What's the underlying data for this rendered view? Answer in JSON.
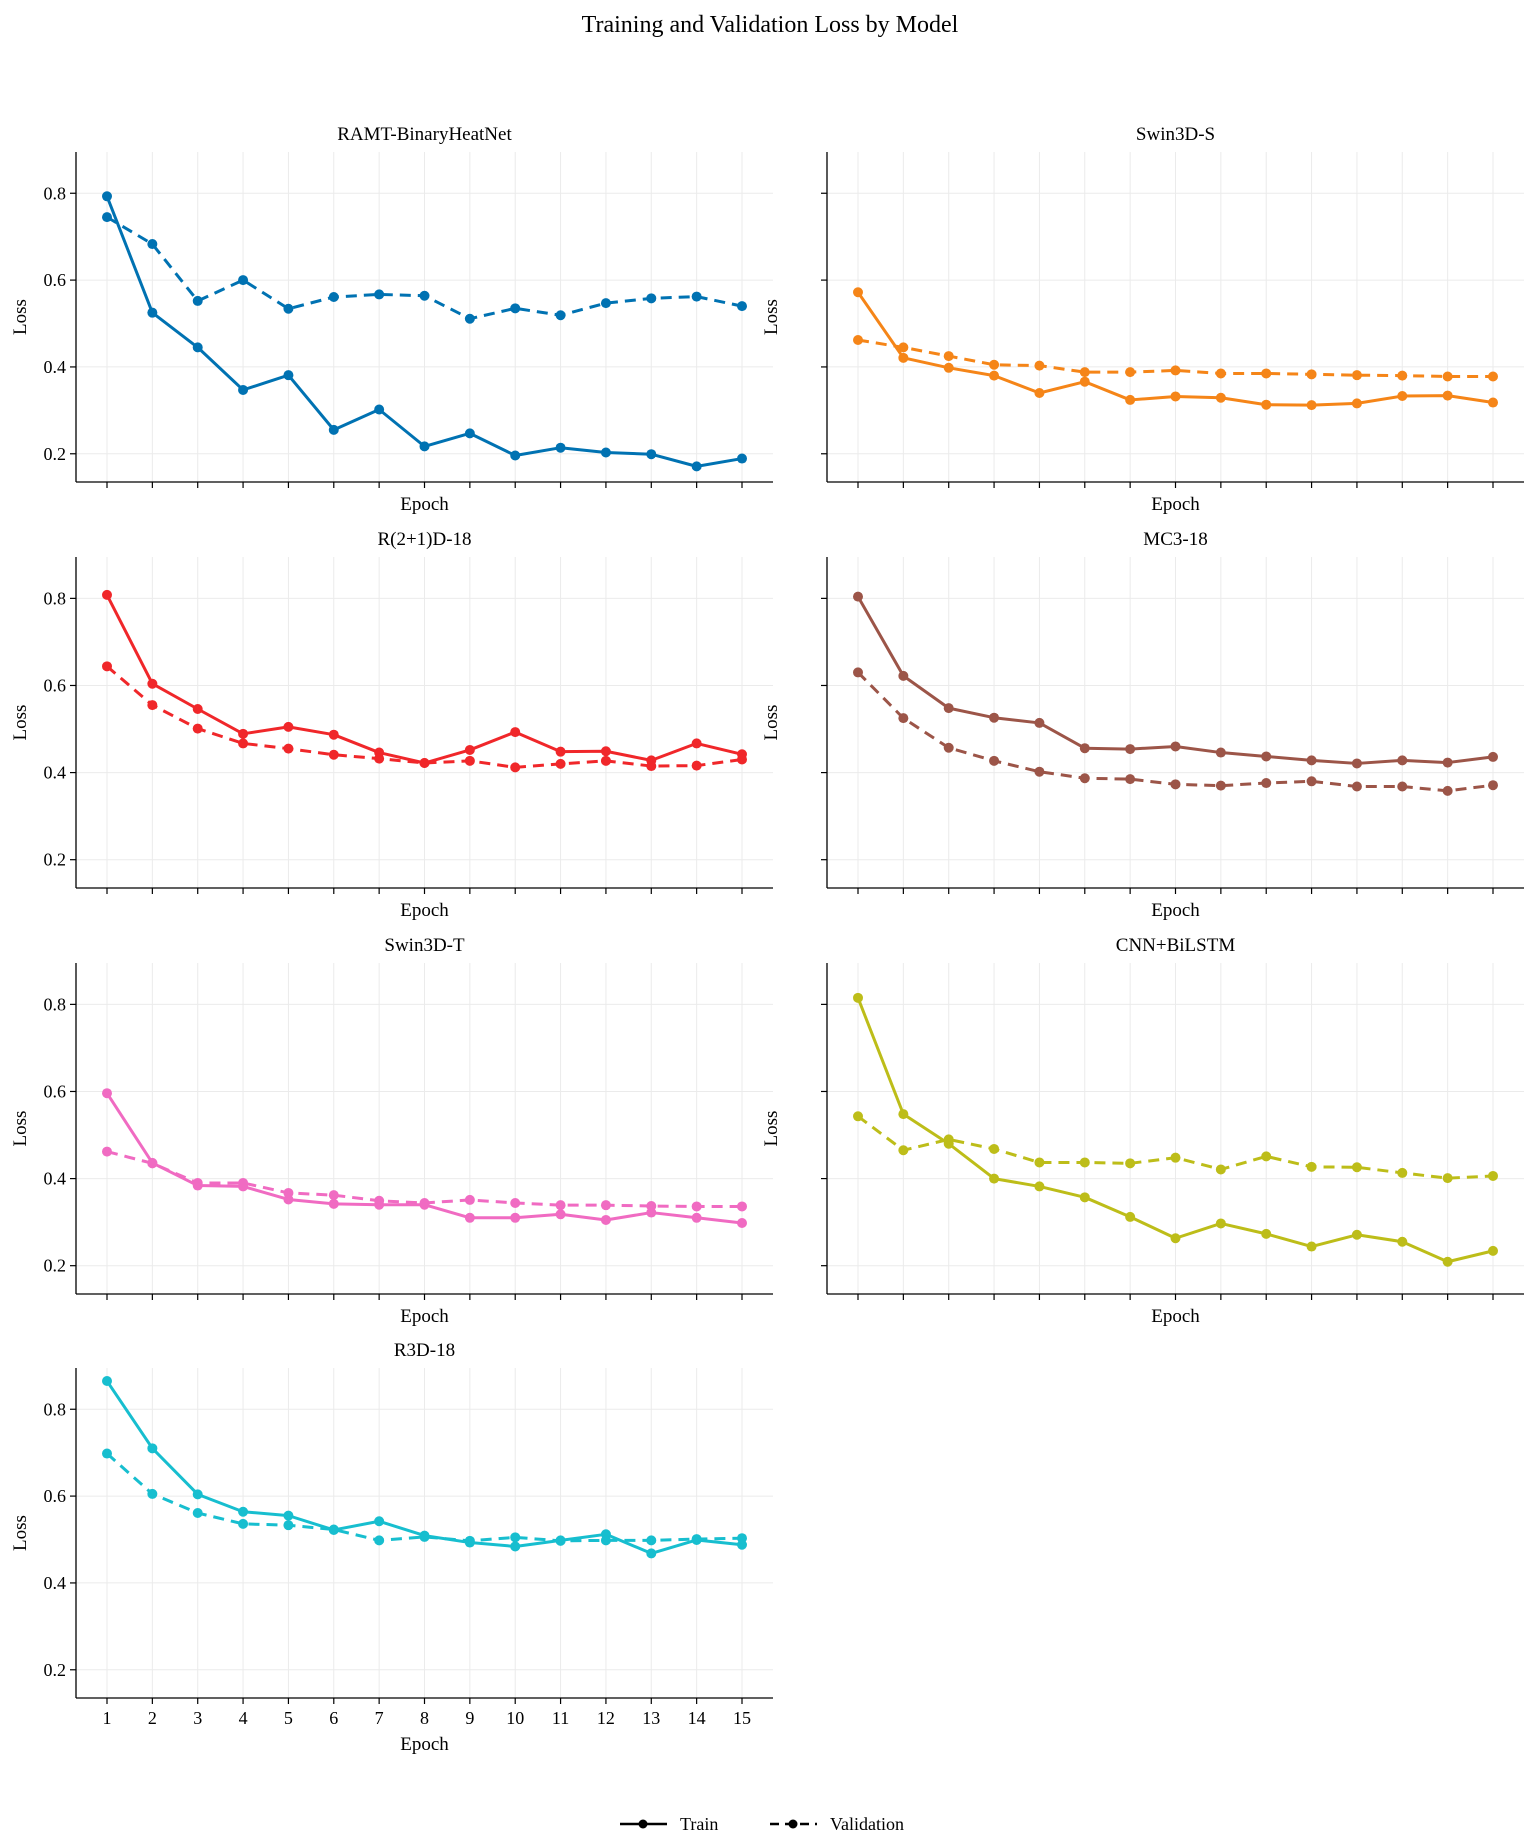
{
  "title": "Training and Validation Loss by Model",
  "legend": {
    "placement": "bottom-center",
    "items": [
      {
        "label": "Train",
        "style": "solid"
      },
      {
        "label": "Validation",
        "style": "dashed"
      }
    ]
  },
  "chart_data": [
    {
      "type": "line",
      "title": "RAMT-BinaryHeatNet",
      "color": "#0072B2",
      "xlabel": "Epoch",
      "ylabel": "Loss",
      "x": [
        1,
        2,
        3,
        4,
        5,
        6,
        7,
        8,
        9,
        10,
        11,
        12,
        13,
        14,
        15
      ],
      "ylim": [
        0.135,
        0.895
      ],
      "yticks": [
        0.2,
        0.4,
        0.6,
        0.8
      ],
      "xtick_labels_shown": false,
      "ytick_labels_shown": true,
      "grid": true,
      "series": [
        {
          "name": "Train",
          "values": [
            0.793,
            0.525,
            0.445,
            0.347,
            0.381,
            0.255,
            0.302,
            0.217,
            0.247,
            0.196,
            0.214,
            0.203,
            0.199,
            0.171,
            0.189
          ]
        },
        {
          "name": "Validation",
          "values": [
            0.745,
            0.683,
            0.552,
            0.6,
            0.534,
            0.561,
            0.567,
            0.564,
            0.511,
            0.535,
            0.519,
            0.547,
            0.558,
            0.562,
            0.54
          ]
        }
      ]
    },
    {
      "type": "line",
      "title": "Swin3D-S",
      "color": "#F58518",
      "xlabel": "Epoch",
      "ylabel": "Loss",
      "x": [
        1,
        2,
        3,
        4,
        5,
        6,
        7,
        8,
        9,
        10,
        11,
        12,
        13,
        14,
        15
      ],
      "ylim": [
        0.135,
        0.895
      ],
      "yticks": [
        0.2,
        0.4,
        0.6,
        0.8
      ],
      "xtick_labels_shown": false,
      "ytick_labels_shown": false,
      "grid": true,
      "series": [
        {
          "name": "Train",
          "values": [
            0.572,
            0.421,
            0.398,
            0.38,
            0.34,
            0.366,
            0.324,
            0.332,
            0.329,
            0.313,
            0.312,
            0.316,
            0.333,
            0.334,
            0.318
          ]
        },
        {
          "name": "Validation",
          "values": [
            0.462,
            0.445,
            0.425,
            0.405,
            0.403,
            0.388,
            0.388,
            0.392,
            0.385,
            0.385,
            0.383,
            0.381,
            0.38,
            0.378,
            0.378
          ]
        }
      ]
    },
    {
      "type": "line",
      "title": "R(2+1)D-18",
      "color": "#F0272A",
      "xlabel": "Epoch",
      "ylabel": "Loss",
      "x": [
        1,
        2,
        3,
        4,
        5,
        6,
        7,
        8,
        9,
        10,
        11,
        12,
        13,
        14,
        15
      ],
      "ylim": [
        0.135,
        0.895
      ],
      "yticks": [
        0.2,
        0.4,
        0.6,
        0.8
      ],
      "xtick_labels_shown": false,
      "ytick_labels_shown": true,
      "grid": true,
      "series": [
        {
          "name": "Train",
          "values": [
            0.808,
            0.604,
            0.546,
            0.489,
            0.505,
            0.487,
            0.446,
            0.422,
            0.452,
            0.493,
            0.448,
            0.449,
            0.428,
            0.467,
            0.442
          ]
        },
        {
          "name": "Validation",
          "values": [
            0.644,
            0.555,
            0.501,
            0.467,
            0.455,
            0.441,
            0.432,
            0.422,
            0.427,
            0.412,
            0.42,
            0.427,
            0.415,
            0.416,
            0.43
          ]
        }
      ]
    },
    {
      "type": "line",
      "title": "MC3-18",
      "color": "#9C5548",
      "xlabel": "Epoch",
      "ylabel": "Loss",
      "x": [
        1,
        2,
        3,
        4,
        5,
        6,
        7,
        8,
        9,
        10,
        11,
        12,
        13,
        14,
        15
      ],
      "ylim": [
        0.135,
        0.895
      ],
      "yticks": [
        0.2,
        0.4,
        0.6,
        0.8
      ],
      "xtick_labels_shown": false,
      "ytick_labels_shown": false,
      "grid": true,
      "series": [
        {
          "name": "Train",
          "values": [
            0.804,
            0.622,
            0.548,
            0.526,
            0.514,
            0.456,
            0.454,
            0.46,
            0.446,
            0.437,
            0.428,
            0.421,
            0.428,
            0.423,
            0.436
          ]
        },
        {
          "name": "Validation",
          "values": [
            0.63,
            0.525,
            0.457,
            0.427,
            0.402,
            0.387,
            0.385,
            0.373,
            0.37,
            0.376,
            0.38,
            0.368,
            0.368,
            0.358,
            0.371
          ]
        }
      ]
    },
    {
      "type": "line",
      "title": "Swin3D-T",
      "color": "#F06BC2",
      "xlabel": "Epoch",
      "ylabel": "Loss",
      "x": [
        1,
        2,
        3,
        4,
        5,
        6,
        7,
        8,
        9,
        10,
        11,
        12,
        13,
        14,
        15
      ],
      "ylim": [
        0.135,
        0.895
      ],
      "yticks": [
        0.2,
        0.4,
        0.6,
        0.8
      ],
      "xtick_labels_shown": false,
      "ytick_labels_shown": true,
      "grid": true,
      "series": [
        {
          "name": "Train",
          "values": [
            0.596,
            0.436,
            0.384,
            0.382,
            0.352,
            0.342,
            0.34,
            0.34,
            0.31,
            0.31,
            0.318,
            0.305,
            0.322,
            0.31,
            0.298
          ]
        },
        {
          "name": "Validation",
          "values": [
            0.462,
            0.435,
            0.39,
            0.39,
            0.367,
            0.362,
            0.349,
            0.344,
            0.351,
            0.344,
            0.339,
            0.339,
            0.337,
            0.336,
            0.336
          ]
        }
      ]
    },
    {
      "type": "line",
      "title": "CNN+BiLSTM",
      "color": "#BDBD19",
      "xlabel": "Epoch",
      "ylabel": "Loss",
      "x": [
        1,
        2,
        3,
        4,
        5,
        6,
        7,
        8,
        9,
        10,
        11,
        12,
        13,
        14,
        15
      ],
      "ylim": [
        0.135,
        0.895
      ],
      "yticks": [
        0.2,
        0.4,
        0.6,
        0.8
      ],
      "xtick_labels_shown": false,
      "ytick_labels_shown": false,
      "grid": true,
      "series": [
        {
          "name": "Train",
          "values": [
            0.815,
            0.548,
            0.48,
            0.4,
            0.382,
            0.357,
            0.312,
            0.263,
            0.297,
            0.273,
            0.244,
            0.271,
            0.255,
            0.209,
            0.234
          ]
        },
        {
          "name": "Validation",
          "values": [
            0.543,
            0.465,
            0.49,
            0.468,
            0.437,
            0.437,
            0.435,
            0.448,
            0.421,
            0.451,
            0.427,
            0.426,
            0.413,
            0.401,
            0.406
          ]
        }
      ]
    },
    {
      "type": "line",
      "title": "R3D-18",
      "color": "#17BECF",
      "xlabel": "Epoch",
      "ylabel": "Loss",
      "x": [
        1,
        2,
        3,
        4,
        5,
        6,
        7,
        8,
        9,
        10,
        11,
        12,
        13,
        14,
        15
      ],
      "ylim": [
        0.135,
        0.895
      ],
      "yticks": [
        0.2,
        0.4,
        0.6,
        0.8
      ],
      "xtick_labels_shown": true,
      "ytick_labels_shown": true,
      "grid": true,
      "series": [
        {
          "name": "Train",
          "values": [
            0.865,
            0.71,
            0.604,
            0.564,
            0.555,
            0.522,
            0.542,
            0.509,
            0.493,
            0.484,
            0.498,
            0.512,
            0.468,
            0.499,
            0.488
          ]
        },
        {
          "name": "Validation",
          "values": [
            0.698,
            0.605,
            0.561,
            0.536,
            0.533,
            0.523,
            0.498,
            0.506,
            0.497,
            0.505,
            0.497,
            0.498,
            0.498,
            0.501,
            0.503
          ]
        }
      ]
    }
  ]
}
